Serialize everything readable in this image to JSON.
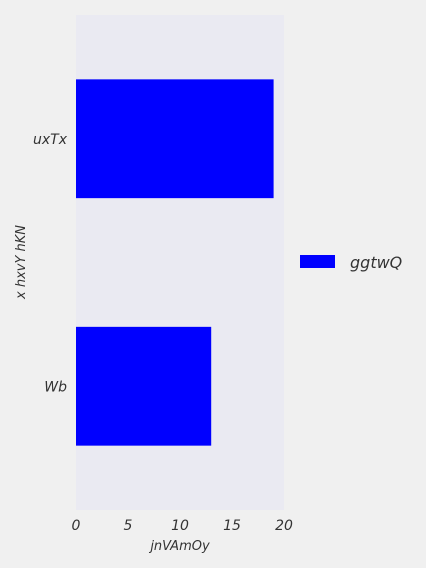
{
  "chart_data": {
    "type": "bar",
    "orientation": "horizontal",
    "categories": [
      "uxTx",
      "Wb"
    ],
    "series": [
      {
        "name": "ggtwQ",
        "values": [
          19,
          13
        ],
        "color": "#0000ff"
      }
    ],
    "xlabel": "jnVAmOy",
    "ylabel": "x hxvY hKN",
    "xlim": [
      0,
      20
    ],
    "xticks": [
      0,
      5,
      10,
      15,
      20
    ],
    "grid": false,
    "legend_position": "right",
    "plot_background": "#eaeaf2",
    "page_background": "#f0f0f0"
  }
}
